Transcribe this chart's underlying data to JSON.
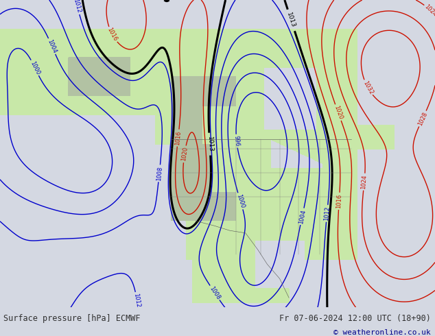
{
  "title_left": "Surface pressure [hPa] ECMWF",
  "title_right": "Fr 07-06-2024 12:00 UTC (18+90)",
  "copyright": "© weatheronline.co.uk",
  "bg_color": "#d4d8e2",
  "land_color": "#c8e8a8",
  "mountain_color": "#a8a8a8",
  "footer_text_color": "#303030",
  "copyright_color": "#00008b",
  "figsize": [
    6.34,
    4.9
  ],
  "dpi": 100,
  "xlim": [
    -180,
    -40
  ],
  "ylim": [
    14,
    78
  ],
  "red_color": "#cc1100",
  "blue_color": "#0000cc",
  "black_color": "#000000"
}
